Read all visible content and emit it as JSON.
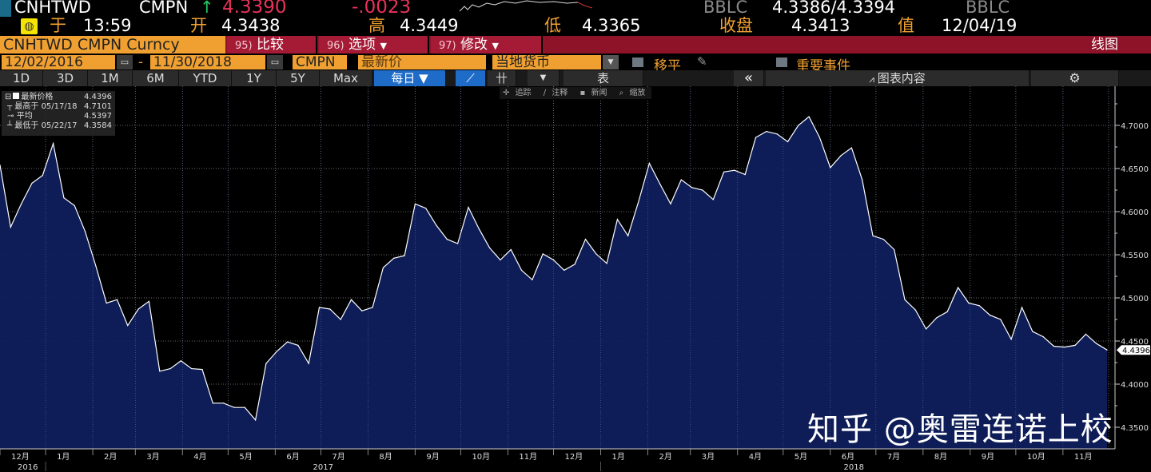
{
  "header": {
    "ticker": "CNHTWD",
    "source": "CMPN",
    "arrow": "↑",
    "last": "4.3390",
    "change": "-.0023",
    "bid_src": "BBLC",
    "bid_ask": "4.3386/4.3394",
    "ask_src": "BBLC",
    "time_label": "于",
    "time": "13:59",
    "open_label": "开",
    "open": "4.3438",
    "high_label": "高",
    "high": "4.3449",
    "low_label": "低",
    "low": "4.3365",
    "close_label": "收盘",
    "close": "4.3413",
    "value_label": "值",
    "value_date": "12/04/19"
  },
  "toolbar": {
    "security": "CNHTWD CMPN Curncy",
    "compare_num": "95)",
    "compare": "比较",
    "options_num": "96)",
    "options": "选项",
    "edit_num": "97)",
    "edit": "修改",
    "chart_type": "线图",
    "start_date": "12/02/2016",
    "date_sep": "-",
    "end_date": "11/30/2018",
    "pricing_source": "CMPN",
    "field": "最新价",
    "currency": "当地货币",
    "smoothing": "移平",
    "events": "重要事件",
    "periods": [
      "1D",
      "3D",
      "1M",
      "6M",
      "YTD",
      "1Y",
      "5Y",
      "Max"
    ],
    "frequency": "每日 ▼",
    "table": "表",
    "collapse": "«",
    "chart_content": "图表内容",
    "tools": [
      "追踪",
      "注释",
      "新闻",
      "缩放"
    ]
  },
  "legend": {
    "last_label": "最新价格",
    "last_value": "4.4396",
    "high_label": "最高于 05/17/18",
    "high_value": "4.7101",
    "avg_label": "平均",
    "avg_value": "4.5397",
    "low_label": "最低于 05/22/17",
    "low_value": "4.3584"
  },
  "watermark": "知乎 @奥雷连诺上校",
  "colors": {
    "accent": "#f0a030",
    "bar_red": "#a51a35",
    "area": "#0f1f5c",
    "line": "#ffffff",
    "up": "#22c55e",
    "down": "#e8325a"
  },
  "chart_data": {
    "type": "area",
    "ylim": [
      4.33,
      4.74
    ],
    "yticks": [
      "4.7000",
      "4.6500",
      "4.6000",
      "4.5500",
      "4.5000",
      "4.4500",
      "4.4000",
      "4.3500"
    ],
    "last_label": "4.4396",
    "x_month_labels": [
      "12月",
      "1月",
      "2月",
      "3月",
      "4月",
      "5月",
      "6月",
      "7月",
      "8月",
      "9月",
      "10月",
      "11月",
      "12月",
      "1月",
      "2月",
      "3月",
      "4月",
      "5月",
      "6月",
      "7月",
      "8月",
      "9月",
      "10月",
      "11月"
    ],
    "x_year_labels": [
      "2016",
      "2017",
      "2018"
    ],
    "grid": true,
    "dates": [
      "2016-12-02",
      "2016-12-09",
      "2016-12-16",
      "2016-12-23",
      "2016-12-30",
      "2017-01-06",
      "2017-01-13",
      "2017-01-20",
      "2017-01-27",
      "2017-02-03",
      "2017-02-10",
      "2017-02-17",
      "2017-02-24",
      "2017-03-03",
      "2017-03-10",
      "2017-03-17",
      "2017-03-24",
      "2017-03-31",
      "2017-04-07",
      "2017-04-14",
      "2017-04-21",
      "2017-04-28",
      "2017-05-05",
      "2017-05-12",
      "2017-05-19",
      "2017-05-26",
      "2017-06-02",
      "2017-06-09",
      "2017-06-16",
      "2017-06-23",
      "2017-06-30",
      "2017-07-07",
      "2017-07-14",
      "2017-07-21",
      "2017-07-28",
      "2017-08-04",
      "2017-08-11",
      "2017-08-18",
      "2017-08-25",
      "2017-09-01",
      "2017-09-08",
      "2017-09-15",
      "2017-09-22",
      "2017-09-29",
      "2017-10-06",
      "2017-10-13",
      "2017-10-20",
      "2017-10-27",
      "2017-11-03",
      "2017-11-10",
      "2017-11-17",
      "2017-11-24",
      "2017-12-01",
      "2017-12-08",
      "2017-12-15",
      "2017-12-22",
      "2017-12-29",
      "2018-01-05",
      "2018-01-12",
      "2018-01-19",
      "2018-01-26",
      "2018-02-02",
      "2018-02-09",
      "2018-02-16",
      "2018-02-23",
      "2018-03-02",
      "2018-03-09",
      "2018-03-16",
      "2018-03-23",
      "2018-03-30",
      "2018-04-06",
      "2018-04-13",
      "2018-04-20",
      "2018-04-27",
      "2018-05-04",
      "2018-05-11",
      "2018-05-18",
      "2018-05-25",
      "2018-06-01",
      "2018-06-08",
      "2018-06-15",
      "2018-06-22",
      "2018-06-29",
      "2018-07-06",
      "2018-07-13",
      "2018-07-20",
      "2018-07-27",
      "2018-08-03",
      "2018-08-10",
      "2018-08-17",
      "2018-08-24",
      "2018-08-31",
      "2018-09-07",
      "2018-09-14",
      "2018-09-21",
      "2018-09-28",
      "2018-10-05",
      "2018-10-12",
      "2018-10-19",
      "2018-10-26",
      "2018-11-02",
      "2018-11-09",
      "2018-11-16",
      "2018-11-23",
      "2018-11-30"
    ],
    "values": [
      4.654,
      4.582,
      4.609,
      4.633,
      4.642,
      4.679,
      4.616,
      4.607,
      4.577,
      4.537,
      4.494,
      4.498,
      4.468,
      4.487,
      4.496,
      4.415,
      4.418,
      4.427,
      4.418,
      4.417,
      4.378,
      4.378,
      4.373,
      4.373,
      4.3584,
      4.424,
      4.438,
      4.449,
      4.445,
      4.424,
      4.489,
      4.487,
      4.475,
      4.498,
      4.485,
      4.489,
      4.535,
      4.546,
      4.549,
      4.609,
      4.604,
      4.584,
      4.568,
      4.563,
      4.605,
      4.58,
      4.558,
      4.544,
      4.556,
      4.532,
      4.521,
      4.551,
      4.544,
      4.532,
      4.539,
      4.568,
      4.551,
      4.54,
      4.591,
      4.572,
      4.612,
      4.656,
      4.632,
      4.609,
      4.637,
      4.628,
      4.625,
      4.614,
      4.646,
      4.648,
      4.643,
      4.686,
      4.693,
      4.69,
      4.681,
      4.7,
      4.7101,
      4.686,
      4.651,
      4.665,
      4.674,
      4.637,
      4.572,
      4.568,
      4.556,
      4.498,
      4.486,
      4.464,
      4.477,
      4.484,
      4.512,
      4.494,
      4.491,
      4.48,
      4.475,
      4.452,
      4.489,
      4.461,
      4.455,
      4.444,
      4.443,
      4.445,
      4.458,
      4.447,
      4.4396
    ]
  }
}
